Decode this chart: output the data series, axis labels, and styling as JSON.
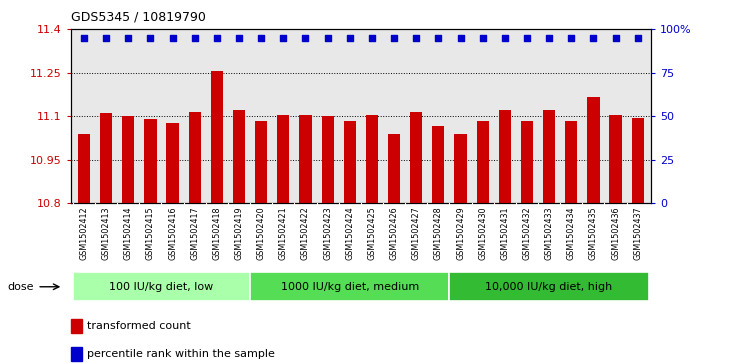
{
  "title": "GDS5345 / 10819790",
  "categories": [
    "GSM1502412",
    "GSM1502413",
    "GSM1502414",
    "GSM1502415",
    "GSM1502416",
    "GSM1502417",
    "GSM1502418",
    "GSM1502419",
    "GSM1502420",
    "GSM1502421",
    "GSM1502422",
    "GSM1502423",
    "GSM1502424",
    "GSM1502425",
    "GSM1502426",
    "GSM1502427",
    "GSM1502428",
    "GSM1502429",
    "GSM1502430",
    "GSM1502431",
    "GSM1502432",
    "GSM1502433",
    "GSM1502434",
    "GSM1502435",
    "GSM1502436",
    "GSM1502437"
  ],
  "bar_values": [
    11.04,
    11.11,
    11.1,
    11.09,
    11.075,
    11.115,
    11.255,
    11.12,
    11.085,
    11.105,
    11.105,
    11.1,
    11.085,
    11.105,
    11.04,
    11.115,
    11.065,
    11.04,
    11.085,
    11.12,
    11.085,
    11.12,
    11.085,
    11.165,
    11.105,
    11.095
  ],
  "bar_color": "#cc0000",
  "percentile_color": "#0000cc",
  "ylim": [
    10.8,
    11.4
  ],
  "yticks": [
    10.8,
    10.95,
    11.1,
    11.25,
    11.4
  ],
  "ytick_labels": [
    "10.8",
    "10.95",
    "11.1",
    "11.25",
    "11.4"
  ],
  "right_yticks": [
    0,
    25,
    50,
    75,
    100
  ],
  "right_ytick_labels": [
    "0",
    "25",
    "50",
    "75",
    "100%"
  ],
  "grid_lines": [
    10.95,
    11.1,
    11.25
  ],
  "groups": [
    {
      "label": "100 IU/kg diet, low",
      "start": 0,
      "end": 7,
      "color": "#aaffaa"
    },
    {
      "label": "1000 IU/kg diet, medium",
      "start": 8,
      "end": 16,
      "color": "#55dd55"
    },
    {
      "label": "10,000 IU/kg diet, high",
      "start": 17,
      "end": 25,
      "color": "#33bb33"
    }
  ],
  "dose_label": "dose",
  "legend_items": [
    {
      "label": "transformed count",
      "color": "#cc0000"
    },
    {
      "label": "percentile rank within the sample",
      "color": "#0000cc"
    }
  ],
  "plot_bg_color": "#e8e8e8",
  "xtick_bg_color": "#cccccc",
  "fig_bg_color": "#ffffff"
}
